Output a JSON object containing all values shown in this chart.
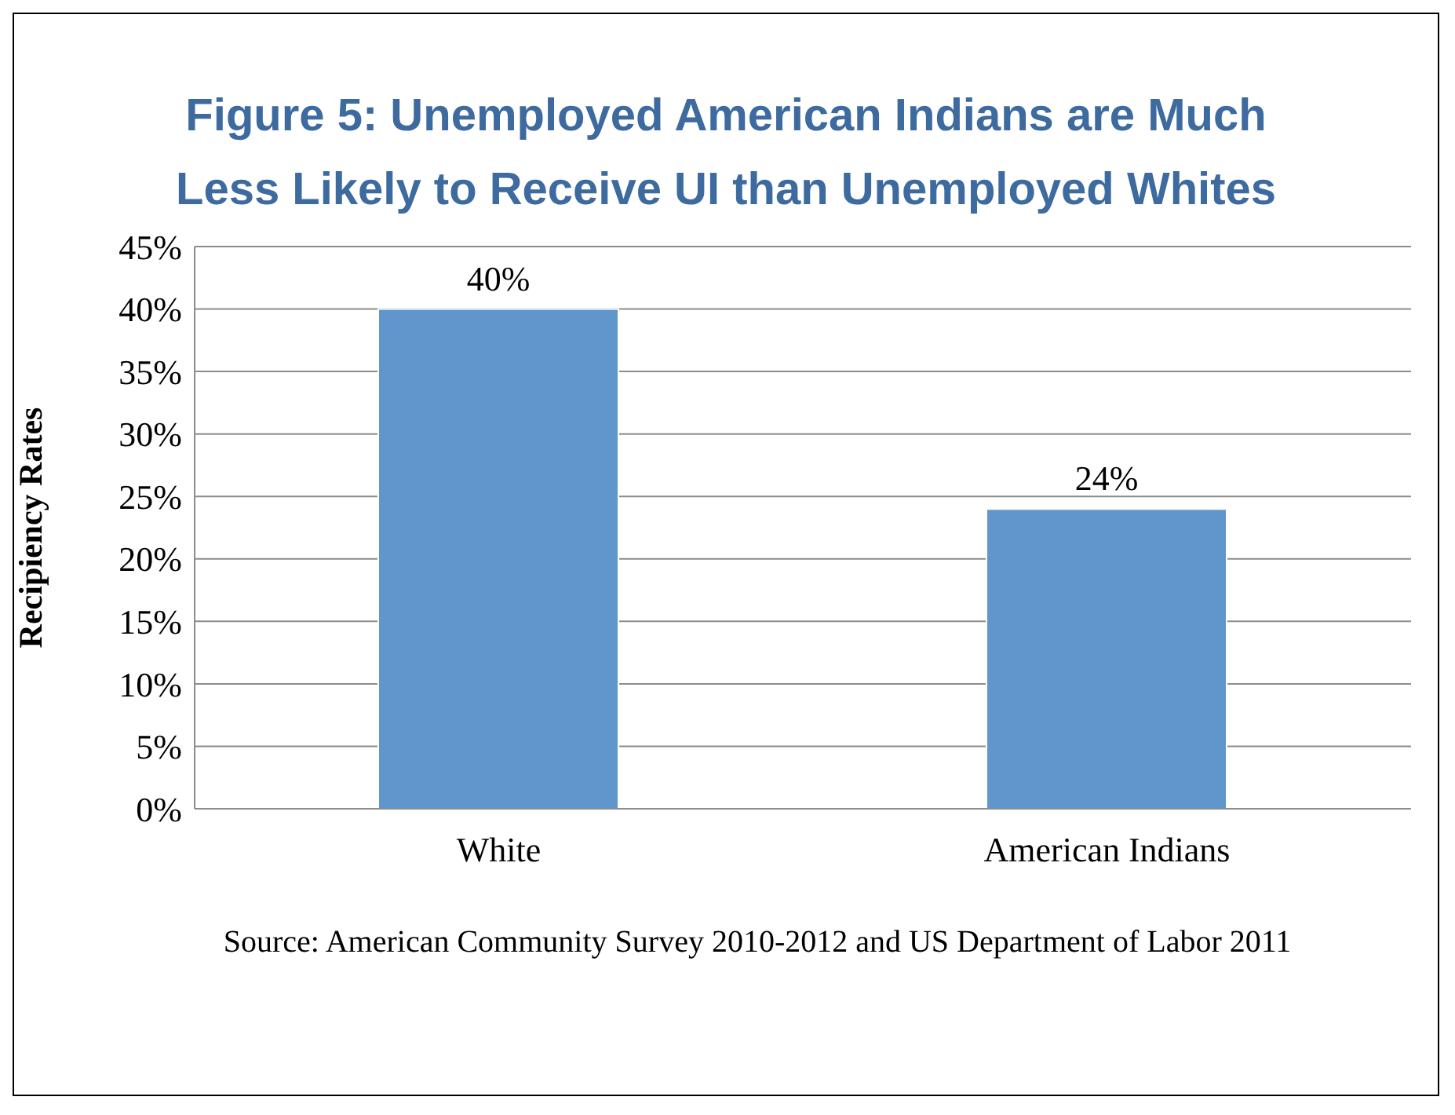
{
  "chart_data": {
    "type": "bar",
    "title": "Figure 5: Unemployed American Indians are Much Less Likely to Receive UI than Unemployed Whites",
    "ylabel": "Recipiency Rates",
    "categories": [
      "White",
      "American Indians"
    ],
    "values": [
      40,
      24
    ],
    "value_labels": [
      "40%",
      "24%"
    ],
    "color": "#6096cc",
    "ylim": [
      0,
      45
    ],
    "yticks": [
      {
        "value": 0,
        "label": "0%"
      },
      {
        "value": 5,
        "label": "5%"
      },
      {
        "value": 10,
        "label": "10%"
      },
      {
        "value": 15,
        "label": "15%"
      },
      {
        "value": 20,
        "label": "20%"
      },
      {
        "value": 25,
        "label": "25%"
      },
      {
        "value": 30,
        "label": "30%"
      },
      {
        "value": 35,
        "label": "35%"
      },
      {
        "value": 40,
        "label": "40%"
      },
      {
        "value": 45,
        "label": "45%"
      }
    ],
    "grid": "y",
    "legend": false,
    "annotations": [
      "Source: American Community Survey 2010-2012 and US Department of Labor 2011"
    ]
  }
}
